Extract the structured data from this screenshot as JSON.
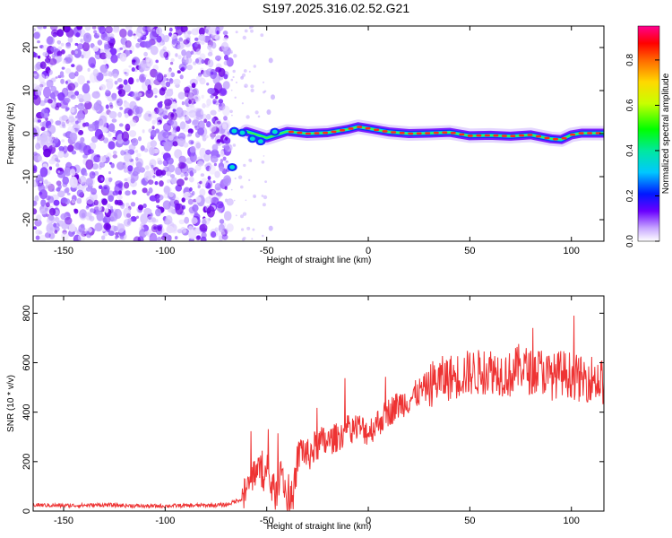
{
  "title": "S197.2025.316.02.52.G21",
  "chart_data": [
    {
      "type": "heatmap",
      "xlabel": "Height of straight line (km)",
      "ylabel": "Frequency (Hz)",
      "xlim": [
        -165,
        116
      ],
      "ylim": [
        -25,
        25
      ],
      "xticks": [
        -150,
        -100,
        -50,
        0,
        50,
        100
      ],
      "yticks": [
        -20,
        -10,
        0,
        10,
        20
      ],
      "colorbar": {
        "label": "Normalized spectral amplitude",
        "range": [
          0,
          0.95
        ],
        "ticks": [
          0.0,
          0.2,
          0.4,
          0.6,
          0.8
        ]
      },
      "noise_region_x": [
        -165,
        -68
      ],
      "signal_track": [
        {
          "x": -60,
          "y": 0.5
        },
        {
          "x": -50,
          "y": -1.0
        },
        {
          "x": -40,
          "y": 0.5
        },
        {
          "x": -30,
          "y": 0.0
        },
        {
          "x": -20,
          "y": 0.2
        },
        {
          "x": -10,
          "y": 1.0
        },
        {
          "x": -5,
          "y": 1.6
        },
        {
          "x": 0,
          "y": 1.2
        },
        {
          "x": 10,
          "y": 0.4
        },
        {
          "x": 20,
          "y": 0.0
        },
        {
          "x": 30,
          "y": 0.1
        },
        {
          "x": 40,
          "y": 0.3
        },
        {
          "x": 50,
          "y": -0.5
        },
        {
          "x": 60,
          "y": -0.4
        },
        {
          "x": 70,
          "y": -0.6
        },
        {
          "x": 80,
          "y": -0.3
        },
        {
          "x": 90,
          "y": -1.2
        },
        {
          "x": 95,
          "y": -1.4
        },
        {
          "x": 100,
          "y": -0.3
        },
        {
          "x": 105,
          "y": 0.1
        },
        {
          "x": 116,
          "y": 0.1
        }
      ]
    },
    {
      "type": "line",
      "xlabel": "Height of straight line (km)",
      "ylabel": "SNR (10 * v/v)",
      "xlim": [
        -165,
        116
      ],
      "ylim": [
        0,
        870
      ],
      "xticks": [
        -150,
        -100,
        -50,
        0,
        50,
        100
      ],
      "yticks": [
        0,
        200,
        400,
        600,
        800
      ],
      "series": [
        {
          "name": "SNR",
          "color": "#ee3333",
          "x": [
            -165,
            -150,
            -130,
            -110,
            -90,
            -70,
            -62,
            -58,
            -55,
            -52,
            -50,
            -47,
            -45,
            -43,
            -40,
            -37,
            -35,
            -33,
            -30,
            -27,
            -25,
            -20,
            -15,
            -10,
            -5,
            0,
            5,
            10,
            15,
            20,
            25,
            30,
            35,
            40,
            45,
            50,
            55,
            60,
            65,
            70,
            75,
            80,
            85,
            90,
            95,
            100,
            105,
            110,
            116
          ],
          "values": [
            25,
            22,
            25,
            20,
            22,
            25,
            50,
            120,
            180,
            150,
            140,
            90,
            60,
            200,
            40,
            60,
            200,
            260,
            220,
            250,
            270,
            280,
            300,
            330,
            340,
            320,
            360,
            400,
            430,
            450,
            480,
            510,
            530,
            540,
            550,
            560,
            560,
            570,
            560,
            550,
            590,
            560,
            570,
            540,
            560,
            550,
            530,
            540,
            520
          ]
        }
      ]
    }
  ]
}
